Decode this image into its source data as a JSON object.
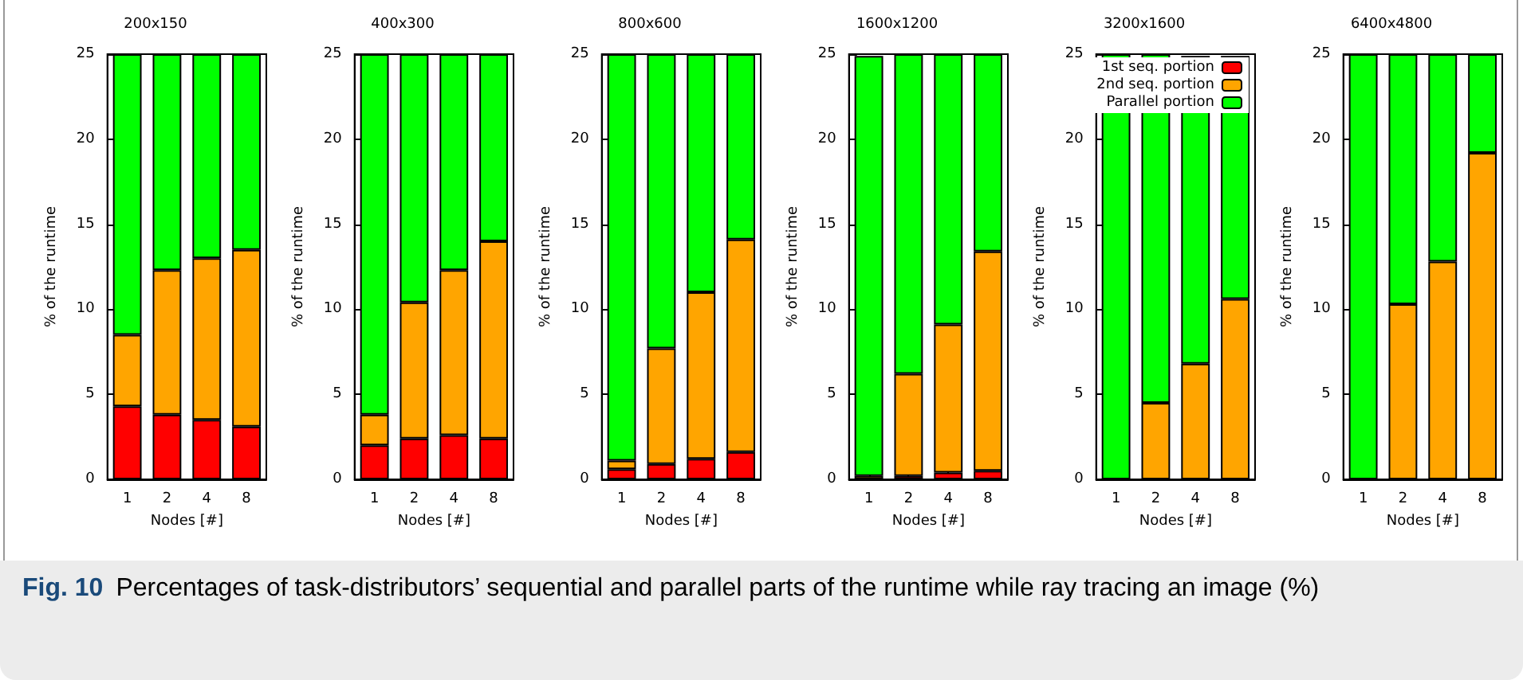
{
  "chart_data": [
    {
      "type": "bar",
      "stacked": true,
      "title": "200x150",
      "xlabel": "Nodes [#]",
      "ylabel": "% of the runtime",
      "categories": [
        "1",
        "2",
        "4",
        "8"
      ],
      "ylim": [
        0,
        25
      ],
      "yticks": [
        0,
        5,
        10,
        15,
        20,
        25
      ],
      "legend": false,
      "annotations": [
        "Fig. 10",
        "Percentages of task-distributors’ sequential and parallel parts of the runtime while ray tracing an image (%)"
      ],
      "series": [
        {
          "color": "#ff0000",
          "values": [
            4.3,
            3.8,
            3.5,
            3.1
          ]
        },
        {
          "color": "#ffa500",
          "values": [
            4.2,
            8.5,
            9.5,
            10.4
          ]
        },
        {
          "color": "#00ff00",
          "values": [
            16.5,
            12.7,
            12.0,
            11.5
          ]
        }
      ]
    },
    {
      "type": "bar",
      "stacked": true,
      "title": "400x300",
      "xlabel": "Nodes [#]",
      "ylabel": "% of the runtime",
      "categories": [
        "1",
        "2",
        "4",
        "8"
      ],
      "ylim": [
        0,
        25
      ],
      "yticks": [
        0,
        5,
        10,
        15,
        20,
        25
      ],
      "legend": false,
      "series": [
        {
          "color": "#ff0000",
          "values": [
            2.0,
            2.4,
            2.6,
            2.4
          ]
        },
        {
          "color": "#ffa500",
          "values": [
            1.8,
            8.0,
            9.7,
            11.6
          ]
        },
        {
          "color": "#00ff00",
          "values": [
            21.2,
            14.6,
            12.7,
            11.0
          ]
        }
      ]
    },
    {
      "type": "bar",
      "stacked": true,
      "title": "800x600",
      "xlabel": "Nodes [#]",
      "ylabel": "% of the runtime",
      "categories": [
        "1",
        "2",
        "4",
        "8"
      ],
      "ylim": [
        0,
        25
      ],
      "yticks": [
        0,
        5,
        10,
        15,
        20,
        25
      ],
      "legend": false,
      "series": [
        {
          "color": "#ff0000",
          "values": [
            0.6,
            0.9,
            1.2,
            1.6
          ]
        },
        {
          "color": "#ffa500",
          "values": [
            0.5,
            6.8,
            9.8,
            12.5
          ]
        },
        {
          "color": "#00ff00",
          "values": [
            23.9,
            17.3,
            14.0,
            10.9
          ]
        }
      ]
    },
    {
      "type": "bar",
      "stacked": true,
      "title": "1600x1200",
      "xlabel": "Nodes [#]",
      "ylabel": "% of the runtime",
      "categories": [
        "1",
        "2",
        "4",
        "8"
      ],
      "ylim": [
        0,
        25
      ],
      "yticks": [
        0,
        5,
        10,
        15,
        20,
        25
      ],
      "legend": false,
      "series": [
        {
          "color": "#ff0000",
          "values": [
            null,
            0.2,
            0.4,
            0.5
          ]
        },
        {
          "color": "#ffa500",
          "values": [
            0.2,
            6.0,
            8.7,
            12.9
          ]
        },
        {
          "color": "#00ff00",
          "values": [
            24.7,
            18.8,
            15.9,
            11.6
          ]
        }
      ]
    },
    {
      "type": "bar",
      "stacked": true,
      "title": "3200x1600",
      "xlabel": "Nodes [#]",
      "ylabel": "% of the runtime",
      "categories": [
        "1",
        "2",
        "4",
        "8"
      ],
      "ylim": [
        0,
        25
      ],
      "yticks": [
        0,
        5,
        10,
        15,
        20,
        25
      ],
      "legend": "top right",
      "series": [
        {
          "name": "1st seq. portion",
          "color": "#ff0000",
          "values": [
            0,
            0,
            null,
            null
          ]
        },
        {
          "name": "2nd seq. portion",
          "color": "#ffa500",
          "values": [
            0,
            4.5,
            6.8,
            10.6
          ]
        },
        {
          "name": "Parallel portion",
          "color": "#00ff00",
          "values": [
            25,
            20.5,
            18.1,
            14.3
          ]
        }
      ]
    },
    {
      "type": "bar",
      "stacked": true,
      "title": "6400x4800",
      "xlabel": "Nodes [#]",
      "ylabel": "% of the runtime",
      "categories": [
        "1",
        "2",
        "4",
        "8"
      ],
      "ylim": [
        0,
        25
      ],
      "yticks": [
        0,
        5,
        10,
        15,
        20,
        25
      ],
      "legend": false,
      "series": [
        {
          "color": "#ff0000",
          "values": [
            0,
            0,
            0,
            0
          ]
        },
        {
          "color": "#ffa500",
          "values": [
            0,
            10.3,
            12.8,
            19.2
          ]
        },
        {
          "color": "#00ff00",
          "values": [
            25,
            14.7,
            12.2,
            5.8
          ]
        }
      ]
    }
  ]
}
